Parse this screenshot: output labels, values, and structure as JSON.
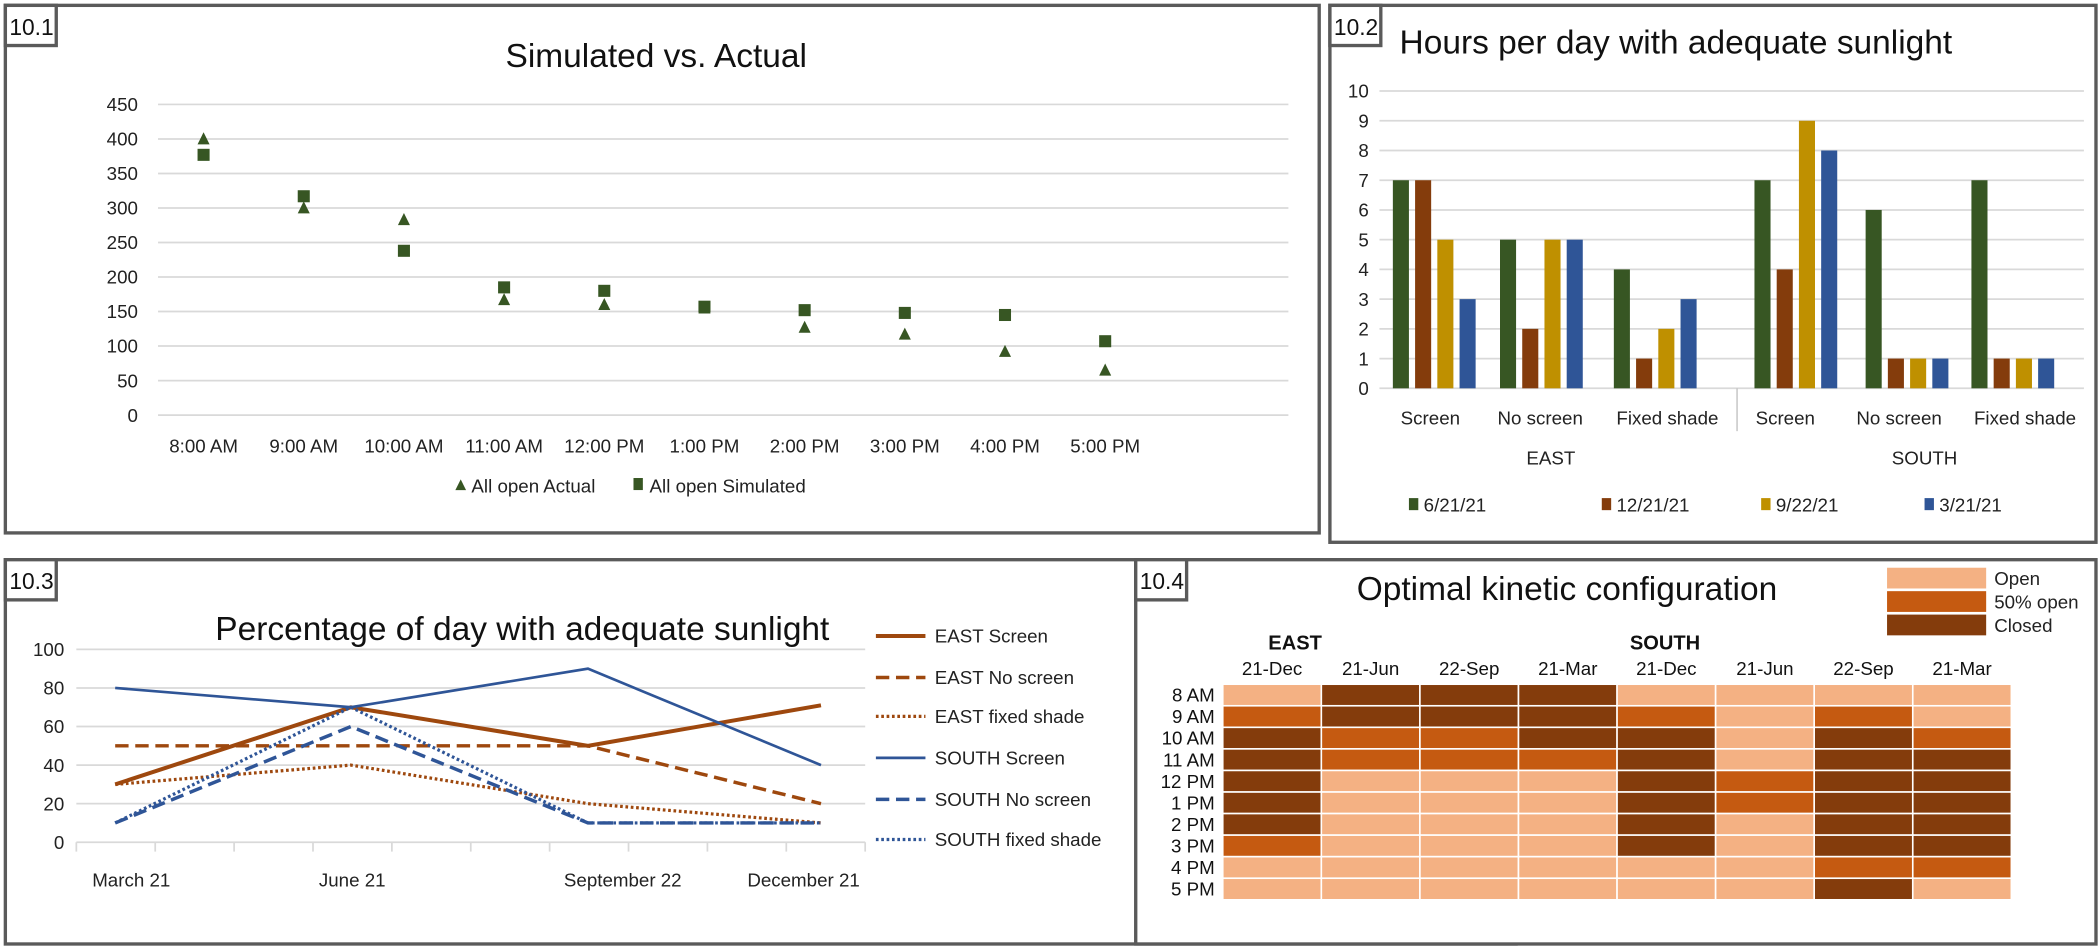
{
  "panels": [
    {
      "label": "10.1",
      "title": "Simulated vs. Actual"
    },
    {
      "label": "10.2",
      "title": "Hours per day with adequate sunlight"
    },
    {
      "label": "10.3",
      "title": "Percentage of day with adequate sunlight"
    },
    {
      "label": "10.4",
      "title": "Optimal kinetic configuration"
    }
  ],
  "chart_data": [
    {
      "type": "scatter",
      "title": "Simulated vs. Actual",
      "categories": [
        "8:00 AM",
        "9:00 AM",
        "10:00 AM",
        "11:00 AM",
        "12:00 PM",
        "1:00 PM",
        "2:00 PM",
        "3:00 PM",
        "4:00 PM",
        "5:00 PM"
      ],
      "yticks": [
        "0",
        "50",
        "100",
        "150",
        "200",
        "250",
        "300",
        "350",
        "400",
        "450"
      ],
      "ylim": [
        0,
        450
      ],
      "grid": true,
      "legend_position": "bottom",
      "series": [
        {
          "name": "All open Actual",
          "marker": "triangle",
          "color": "#375623",
          "values": [
            400,
            300,
            283,
            167,
            160,
            155,
            127,
            117,
            92,
            65
          ]
        },
        {
          "name": "All open Simulated",
          "marker": "square",
          "color": "#375623",
          "values": [
            377,
            317,
            238,
            185,
            180,
            157,
            152,
            148,
            145,
            107
          ]
        }
      ]
    },
    {
      "type": "bar",
      "title": "Hours per day with adequate sunlight",
      "categories": [
        "Screen",
        "No screen",
        "Fixed shade",
        "Screen",
        "No screen",
        "Fixed shade"
      ],
      "groups": [
        "EAST",
        "SOUTH"
      ],
      "yticks": [
        "0",
        "1",
        "2",
        "3",
        "4",
        "5",
        "6",
        "7",
        "8",
        "9",
        "10"
      ],
      "ylim": [
        0,
        10
      ],
      "grid": true,
      "legend_position": "bottom",
      "series": [
        {
          "name": "6/21/21",
          "color": "#375623",
          "values": [
            7,
            5,
            4,
            7,
            6,
            7
          ]
        },
        {
          "name": "12/21/21",
          "color": "#843c0c",
          "values": [
            7,
            2,
            1,
            4,
            1,
            1
          ]
        },
        {
          "name": "9/22/21",
          "color": "#bf9000",
          "values": [
            5,
            5,
            2,
            9,
            1,
            1
          ]
        },
        {
          "name": "3/21/21",
          "color": "#2f5597",
          "values": [
            3,
            5,
            3,
            8,
            1,
            1
          ]
        }
      ]
    },
    {
      "type": "line",
      "title": "Percentage of day with adequate sunlight",
      "categories": [
        "March 21",
        "June 21",
        "September 22",
        "December 21"
      ],
      "yticks": [
        "0",
        "20",
        "40",
        "60",
        "80",
        "100"
      ],
      "ylim": [
        0,
        100
      ],
      "grid": true,
      "legend_position": "right",
      "series": [
        {
          "name": "EAST Screen",
          "style": "solid",
          "color": "#9e480e",
          "values": [
            30,
            70,
            50,
            71
          ]
        },
        {
          "name": "EAST No screen",
          "style": "dashed",
          "color": "#9e480e",
          "values": [
            50,
            50,
            50,
            20
          ]
        },
        {
          "name": "EAST fixed shade",
          "style": "dotted",
          "color": "#9e480e",
          "values": [
            30,
            40,
            20,
            10
          ]
        },
        {
          "name": "SOUTH Screen",
          "style": "solid",
          "color": "#2f5597",
          "values": [
            80,
            70,
            90,
            40
          ]
        },
        {
          "name": "SOUTH No screen",
          "style": "dashed",
          "color": "#2f5597",
          "values": [
            10,
            60,
            10,
            10
          ]
        },
        {
          "name": "SOUTH fixed shade",
          "style": "dotted",
          "color": "#2f5597",
          "values": [
            10,
            70,
            10,
            10
          ]
        }
      ]
    },
    {
      "type": "heatmap",
      "title": "Optimal kinetic configuration",
      "groups": [
        "EAST",
        "SOUTH"
      ],
      "columns": [
        "21-Dec",
        "21-Jun",
        "22-Sep",
        "21-Mar",
        "21-Dec",
        "21-Jun",
        "22-Sep",
        "21-Mar"
      ],
      "rows": [
        "8 AM",
        "9 AM",
        "10 AM",
        "11 AM",
        "12 PM",
        "1 PM",
        "2 PM",
        "3 PM",
        "4 PM",
        "5 PM"
      ],
      "legend": [
        {
          "key": "O",
          "label": "Open",
          "color": "#f4b183"
        },
        {
          "key": "H",
          "label": "50% open",
          "color": "#c55a11"
        },
        {
          "key": "C",
          "label": "Closed",
          "color": "#843c0c"
        }
      ],
      "legend_position": "top-right",
      "values": [
        [
          "O",
          "C",
          "C",
          "C",
          "O",
          "O",
          "O",
          "O"
        ],
        [
          "H",
          "C",
          "C",
          "C",
          "H",
          "O",
          "H",
          "O"
        ],
        [
          "C",
          "H",
          "H",
          "C",
          "C",
          "O",
          "C",
          "H"
        ],
        [
          "C",
          "H",
          "H",
          "H",
          "C",
          "O",
          "C",
          "C"
        ],
        [
          "C",
          "O",
          "O",
          "O",
          "C",
          "H",
          "C",
          "C"
        ],
        [
          "C",
          "O",
          "O",
          "O",
          "C",
          "H",
          "C",
          "C"
        ],
        [
          "C",
          "O",
          "O",
          "O",
          "C",
          "O",
          "C",
          "C"
        ],
        [
          "H",
          "O",
          "O",
          "O",
          "C",
          "O",
          "C",
          "C"
        ],
        [
          "O",
          "O",
          "O",
          "O",
          "O",
          "O",
          "H",
          "H"
        ],
        [
          "O",
          "O",
          "O",
          "O",
          "O",
          "O",
          "C",
          "O"
        ]
      ]
    }
  ]
}
